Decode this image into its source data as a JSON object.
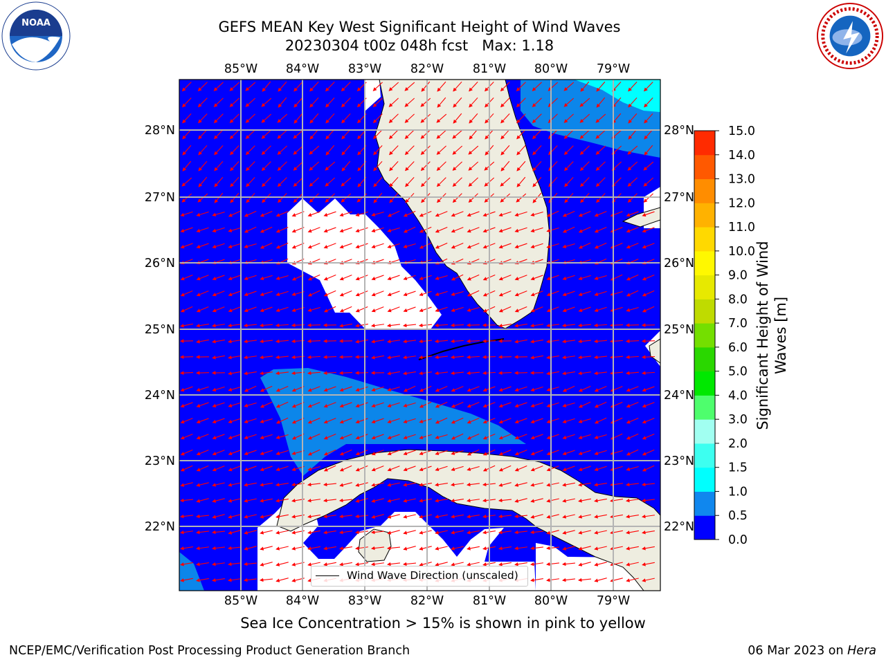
{
  "title": {
    "line1": "GEFS MEAN Key West Significant Height of Wind Waves",
    "line2": "20230304 t00z 048h fcst   Max: 1.18"
  },
  "map": {
    "lon_labels": [
      "85°W",
      "84°W",
      "83°W",
      "82°W",
      "81°W",
      "80°W",
      "79°W"
    ],
    "lat_labels": [
      "28°N",
      "27°N",
      "26°N",
      "25°N",
      "24°N",
      "23°N",
      "22°N"
    ],
    "colors": {
      "ocean_low": "#0000fe",
      "ocean_mid": "#0c86ea",
      "ocean_high": "#00ffff",
      "land": "#eeede0",
      "arrow": "#ff0000",
      "grid": "#b4b4b4"
    }
  },
  "legend": {
    "label": "Wind Wave Direction (unscaled)"
  },
  "colorbar": {
    "label_line1": "Significant Height of Wind",
    "label_line2": "Waves [m]",
    "ticks": [
      "0.0",
      "0.5",
      "1.0",
      "1.5",
      "2.0",
      "3.0",
      "4.0",
      "5.0",
      "6.0",
      "7.0",
      "8.0",
      "9.0",
      "10.0",
      "11.0",
      "12.0",
      "13.0",
      "14.0",
      "15.0"
    ],
    "colors": [
      "#0000ff",
      "#1087ee",
      "#00fffe",
      "#3dfff0",
      "#a1fff1",
      "#4efe6d",
      "#00e800",
      "#2ad700",
      "#74df00",
      "#bfdb00",
      "#e7e900",
      "#fff800",
      "#ffd900",
      "#ffb200",
      "#ff8d00",
      "#ff5900",
      "#ff2b00"
    ]
  },
  "caption": "Sea Ice Concentration > 15% is shown in pink to yellow",
  "footer": {
    "left": "NCEP/EMC/Verification Post Processing Product Generation Branch",
    "right_date": "06 Mar 2023 on ",
    "right_host": "Hera"
  },
  "logos": {
    "noaa_text": "NOAA",
    "nws_text": "NATIONAL WEATHER SERVICE"
  }
}
